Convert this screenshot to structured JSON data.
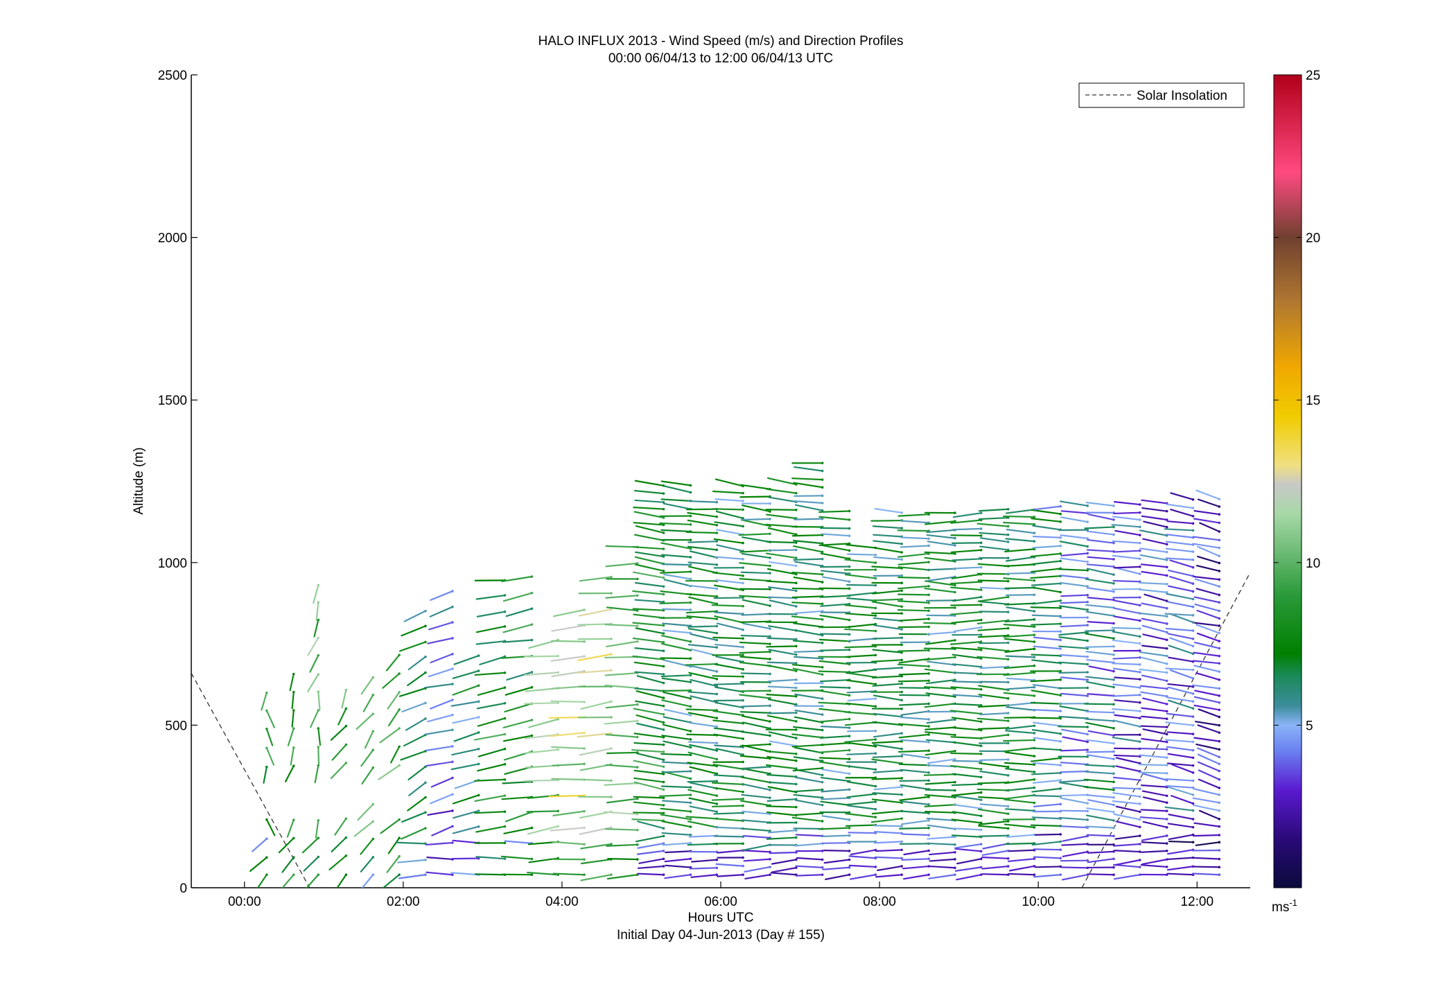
{
  "chart_data": {
    "type": "wind barb profile",
    "title": "HALO INFLUX 2013 - Wind Speed (m/s) and Direction Profiles",
    "subtitle": "00:00 06/04/13 to 12:00 06/04/13  UTC",
    "xlabel": "Hours UTC",
    "xlabel2": "Initial Day 04-Jun-2013 (Day # 155)",
    "ylabel": "Altitude (m)",
    "xlim_hours": [
      -0.67,
      12.67
    ],
    "ylim": [
      0,
      2500
    ],
    "x_ticks": [
      {
        "value": 0,
        "label": "00:00"
      },
      {
        "value": 2,
        "label": "02:00"
      },
      {
        "value": 4,
        "label": "04:00"
      },
      {
        "value": 6,
        "label": "06:00"
      },
      {
        "value": 8,
        "label": "08:00"
      },
      {
        "value": 10,
        "label": "10:00"
      },
      {
        "value": 12,
        "label": "12:00"
      }
    ],
    "y_ticks": [
      {
        "value": 0,
        "label": "0"
      },
      {
        "value": 500,
        "label": "500"
      },
      {
        "value": 1000,
        "label": "1000"
      },
      {
        "value": 1500,
        "label": "1500"
      },
      {
        "value": 2000,
        "label": "2000"
      },
      {
        "value": 2500,
        "label": "2500"
      }
    ],
    "legend": {
      "label": "Solar Insolation",
      "style": "dashed",
      "placement": "top-right"
    },
    "colorbar": {
      "range": [
        0,
        25
      ],
      "unit_label": "ms",
      "unit_exponent": "-1",
      "ticks": [
        {
          "value": 5,
          "label": "5"
        },
        {
          "value": 10,
          "label": "10"
        },
        {
          "value": 15,
          "label": "15"
        },
        {
          "value": 20,
          "label": "20"
        },
        {
          "value": 25,
          "label": "25"
        }
      ],
      "stops": [
        {
          "v": 0,
          "c": "#0a0a3c"
        },
        {
          "v": 1.5,
          "c": "#2a0a78"
        },
        {
          "v": 3,
          "c": "#5a1ad0"
        },
        {
          "v": 4.2,
          "c": "#6a80f0"
        },
        {
          "v": 5,
          "c": "#8ab4f8"
        },
        {
          "v": 5.6,
          "c": "#3c8c9a"
        },
        {
          "v": 6.5,
          "c": "#1a8a5a"
        },
        {
          "v": 7.2,
          "c": "#008000"
        },
        {
          "v": 9,
          "c": "#2a9a3a"
        },
        {
          "v": 11.5,
          "c": "#a8d8a8"
        },
        {
          "v": 12.4,
          "c": "#c8c8c8"
        },
        {
          "v": 13,
          "c": "#f0e080"
        },
        {
          "v": 14.5,
          "c": "#f0cc00"
        },
        {
          "v": 16,
          "c": "#f0a800"
        },
        {
          "v": 18,
          "c": "#b07830"
        },
        {
          "v": 20,
          "c": "#704030"
        },
        {
          "v": 22,
          "c": "#ff4a80"
        },
        {
          "v": 25,
          "c": "#b0001a"
        }
      ]
    },
    "insolation_lines": [
      {
        "x": [
          -0.67,
          0.82
        ],
        "y": [
          660,
          0
        ]
      },
      {
        "x": [
          10.55,
          12.67
        ],
        "y": [
          0,
          970
        ]
      }
    ],
    "profiles": [
      {
        "t": 0.28,
        "zmin": 40,
        "zmax": 640,
        "dir": 355,
        "spd": 8,
        "sparse": 2
      },
      {
        "t": 0.62,
        "zmin": 40,
        "zmax": 660,
        "dir": 15,
        "spd": 9,
        "sparse": 2
      },
      {
        "t": 0.93,
        "zmin": 40,
        "zmax": 950,
        "dir": 10,
        "spd": 10,
        "sparse": 2
      },
      {
        "t": 1.28,
        "zmin": 40,
        "zmax": 640,
        "dir": 20,
        "spd": 9,
        "sparse": 2
      },
      {
        "t": 1.62,
        "zmin": 40,
        "zmax": 670,
        "dir": 20,
        "spd": 9,
        "sparse": 2
      },
      {
        "t": 1.95,
        "zmin": 40,
        "zmax": 760,
        "dir": 25,
        "spd": 10,
        "sparse": 2
      },
      {
        "t": 2.28,
        "zmin": 40,
        "zmax": 880,
        "dir": 50,
        "spd": 7,
        "sparse": 1
      },
      {
        "t": 2.62,
        "zmin": 40,
        "zmax": 920,
        "dir": 65,
        "spd": 4,
        "sparse": 1
      },
      {
        "t": 2.95,
        "zmin": 40,
        "zmax": 730,
        "dir": 65,
        "spd": 7,
        "sparse": 1
      },
      {
        "t": 3.28,
        "zmin": 40,
        "zmax": 950,
        "dir": 75,
        "spd": 8,
        "sparse": 1
      },
      {
        "t": 3.62,
        "zmin": 40,
        "zmax": 960,
        "dir": 70,
        "spd": 8,
        "sparse": 1
      },
      {
        "t": 3.95,
        "zmin": 40,
        "zmax": 800,
        "dir": 75,
        "spd": 10,
        "sparse": 1
      },
      {
        "t": 4.28,
        "zmin": 40,
        "zmax": 870,
        "dir": 80,
        "spd": 12,
        "sparse": 1
      },
      {
        "t": 4.62,
        "zmin": 40,
        "zmax": 960,
        "dir": 80,
        "spd": 12,
        "sparse": 1
      },
      {
        "t": 4.95,
        "zmin": 40,
        "zmax": 1060,
        "dir": 88,
        "spd": 10,
        "sparse": 1
      },
      {
        "t": 5.28,
        "zmin": 40,
        "zmax": 1260,
        "dir": 105,
        "spd": 8,
        "sparse": 0
      },
      {
        "t": 5.62,
        "zmin": 40,
        "zmax": 1250,
        "dir": 100,
        "spd": 7,
        "sparse": 0
      },
      {
        "t": 5.95,
        "zmin": 40,
        "zmax": 1200,
        "dir": 100,
        "spd": 7,
        "sparse": 0
      },
      {
        "t": 6.28,
        "zmin": 40,
        "zmax": 1250,
        "dir": 100,
        "spd": 7,
        "sparse": 0
      },
      {
        "t": 6.62,
        "zmin": 40,
        "zmax": 1250,
        "dir": 98,
        "spd": 7,
        "sparse": 0
      },
      {
        "t": 6.95,
        "zmin": 40,
        "zmax": 1260,
        "dir": 98,
        "spd": 7,
        "sparse": 0
      },
      {
        "t": 7.28,
        "zmin": 40,
        "zmax": 1320,
        "dir": 96,
        "spd": 7,
        "sparse": 0
      },
      {
        "t": 7.62,
        "zmin": 40,
        "zmax": 1170,
        "dir": 95,
        "spd": 7,
        "sparse": 0
      },
      {
        "t": 7.95,
        "zmin": 40,
        "zmax": 1050,
        "dir": 92,
        "spd": 7,
        "sparse": 0
      },
      {
        "t": 8.28,
        "zmin": 40,
        "zmax": 1170,
        "dir": 92,
        "spd": 7,
        "sparse": 0
      },
      {
        "t": 8.62,
        "zmin": 40,
        "zmax": 1160,
        "dir": 90,
        "spd": 7,
        "sparse": 0
      },
      {
        "t": 8.95,
        "zmin": 40,
        "zmax": 1170,
        "dir": 90,
        "spd": 7,
        "sparse": 0
      },
      {
        "t": 9.28,
        "zmin": 40,
        "zmax": 1170,
        "dir": 90,
        "spd": 7,
        "sparse": 0
      },
      {
        "t": 9.62,
        "zmin": 40,
        "zmax": 1170,
        "dir": 90,
        "spd": 7,
        "sparse": 0
      },
      {
        "t": 9.95,
        "zmin": 40,
        "zmax": 1180,
        "dir": 90,
        "spd": 7,
        "sparse": 0
      },
      {
        "t": 10.28,
        "zmin": 40,
        "zmax": 1180,
        "dir": 92,
        "spd": 6,
        "sparse": 0
      },
      {
        "t": 10.62,
        "zmin": 40,
        "zmax": 1180,
        "dir": 95,
        "spd": 5,
        "sparse": 0
      },
      {
        "t": 10.95,
        "zmin": 40,
        "zmax": 1180,
        "dir": 98,
        "spd": 5,
        "sparse": 0
      },
      {
        "t": 11.28,
        "zmin": 40,
        "zmax": 1190,
        "dir": 100,
        "spd": 4,
        "sparse": 0
      },
      {
        "t": 11.62,
        "zmin": 40,
        "zmax": 1190,
        "dir": 105,
        "spd": 4,
        "sparse": 0
      },
      {
        "t": 11.95,
        "zmin": 40,
        "zmax": 1200,
        "dir": 110,
        "spd": 4,
        "sparse": 0
      },
      {
        "t": 12.28,
        "zmin": 40,
        "zmax": 1200,
        "dir": 115,
        "spd": 3,
        "sparse": 0
      }
    ]
  }
}
